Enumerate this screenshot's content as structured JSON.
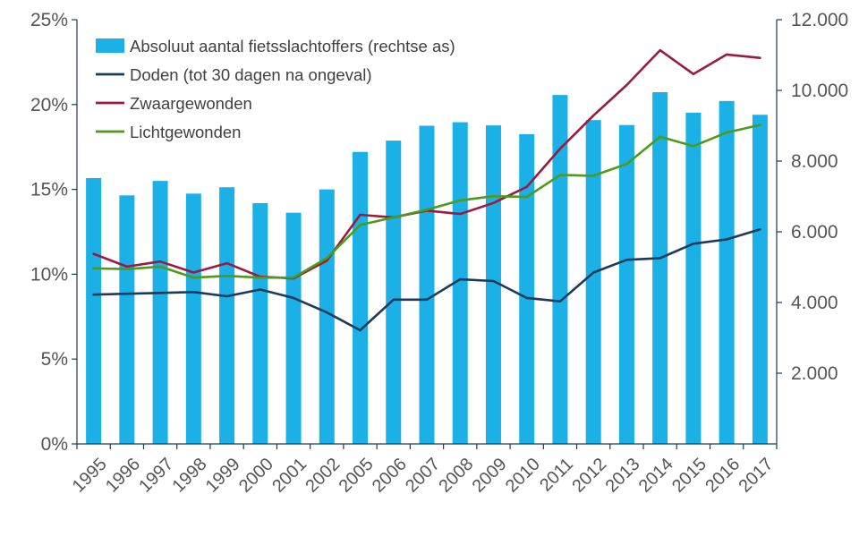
{
  "chart_data": {
    "type": "bar",
    "categories": [
      "1995",
      "1996",
      "1997",
      "1998",
      "1999",
      "2000",
      "2001",
      "2002",
      "2005",
      "2006",
      "2007",
      "2008",
      "2009",
      "2010",
      "2011",
      "2012",
      "2013",
      "2014",
      "2015",
      "2016",
      "2017"
    ],
    "bar_series": {
      "name": "Absoluut aantal fietsslachtoffers (rechtse as)",
      "axis": "right",
      "color": "#1BB0E6",
      "values": [
        7520,
        7030,
        7440,
        7080,
        7260,
        6810,
        6540,
        7200,
        8260,
        8580,
        9000,
        9100,
        9010,
        8760,
        9870,
        9160,
        9020,
        9950,
        9370,
        9700,
        9310
      ]
    },
    "line_series": [
      {
        "name": "Doden (tot 30 dagen na ongeval)",
        "axis": "left",
        "color": "#1B3A5C",
        "values": [
          8.8,
          8.85,
          8.9,
          8.95,
          8.7,
          9.1,
          8.6,
          7.75,
          6.7,
          8.5,
          8.5,
          9.7,
          9.6,
          8.6,
          8.4,
          10.1,
          10.85,
          10.95,
          11.8,
          12.05,
          12.65
        ]
      },
      {
        "name": "Zwaargewonden",
        "axis": "left",
        "color": "#9B1B40",
        "values": [
          11.2,
          10.45,
          10.75,
          10.1,
          10.65,
          9.85,
          9.75,
          10.8,
          13.5,
          13.35,
          13.75,
          13.55,
          14.2,
          15.15,
          17.4,
          19.35,
          21.15,
          23.2,
          21.8,
          22.95,
          22.75
        ]
      },
      {
        "name": "Lichtgewonden",
        "axis": "left",
        "color": "#4E9A1C",
        "values": [
          10.35,
          10.3,
          10.45,
          9.8,
          9.9,
          9.8,
          9.8,
          10.95,
          12.9,
          13.35,
          13.8,
          14.35,
          14.6,
          14.55,
          15.85,
          15.8,
          16.5,
          18.1,
          17.55,
          18.35,
          18.8
        ]
      }
    ],
    "y_left": {
      "ticks": [
        "0%",
        "5%",
        "10%",
        "15%",
        "20%",
        "25%"
      ],
      "ylim": [
        0,
        25
      ]
    },
    "y_right": {
      "ticks": [
        "2.000",
        "4.000",
        "6.000",
        "8.000",
        "10.000",
        "12.000"
      ],
      "ylim": [
        0,
        12000
      ]
    },
    "legend": {
      "placement": "top-left",
      "items": [
        {
          "label": "Absoluut aantal fietsslachtoffers (rechtse as)",
          "kind": "bar",
          "color": "#1BB0E6"
        },
        {
          "label": "Doden (tot 30 dagen na ongeval)",
          "kind": "line",
          "color": "#1B3A5C"
        },
        {
          "label": "Zwaargewonden",
          "kind": "line",
          "color": "#9B1B40"
        },
        {
          "label": "Lichtgewonden",
          "kind": "line",
          "color": "#4E9A1C"
        }
      ]
    },
    "grid": false,
    "axis_color": "#1B3A5C"
  }
}
